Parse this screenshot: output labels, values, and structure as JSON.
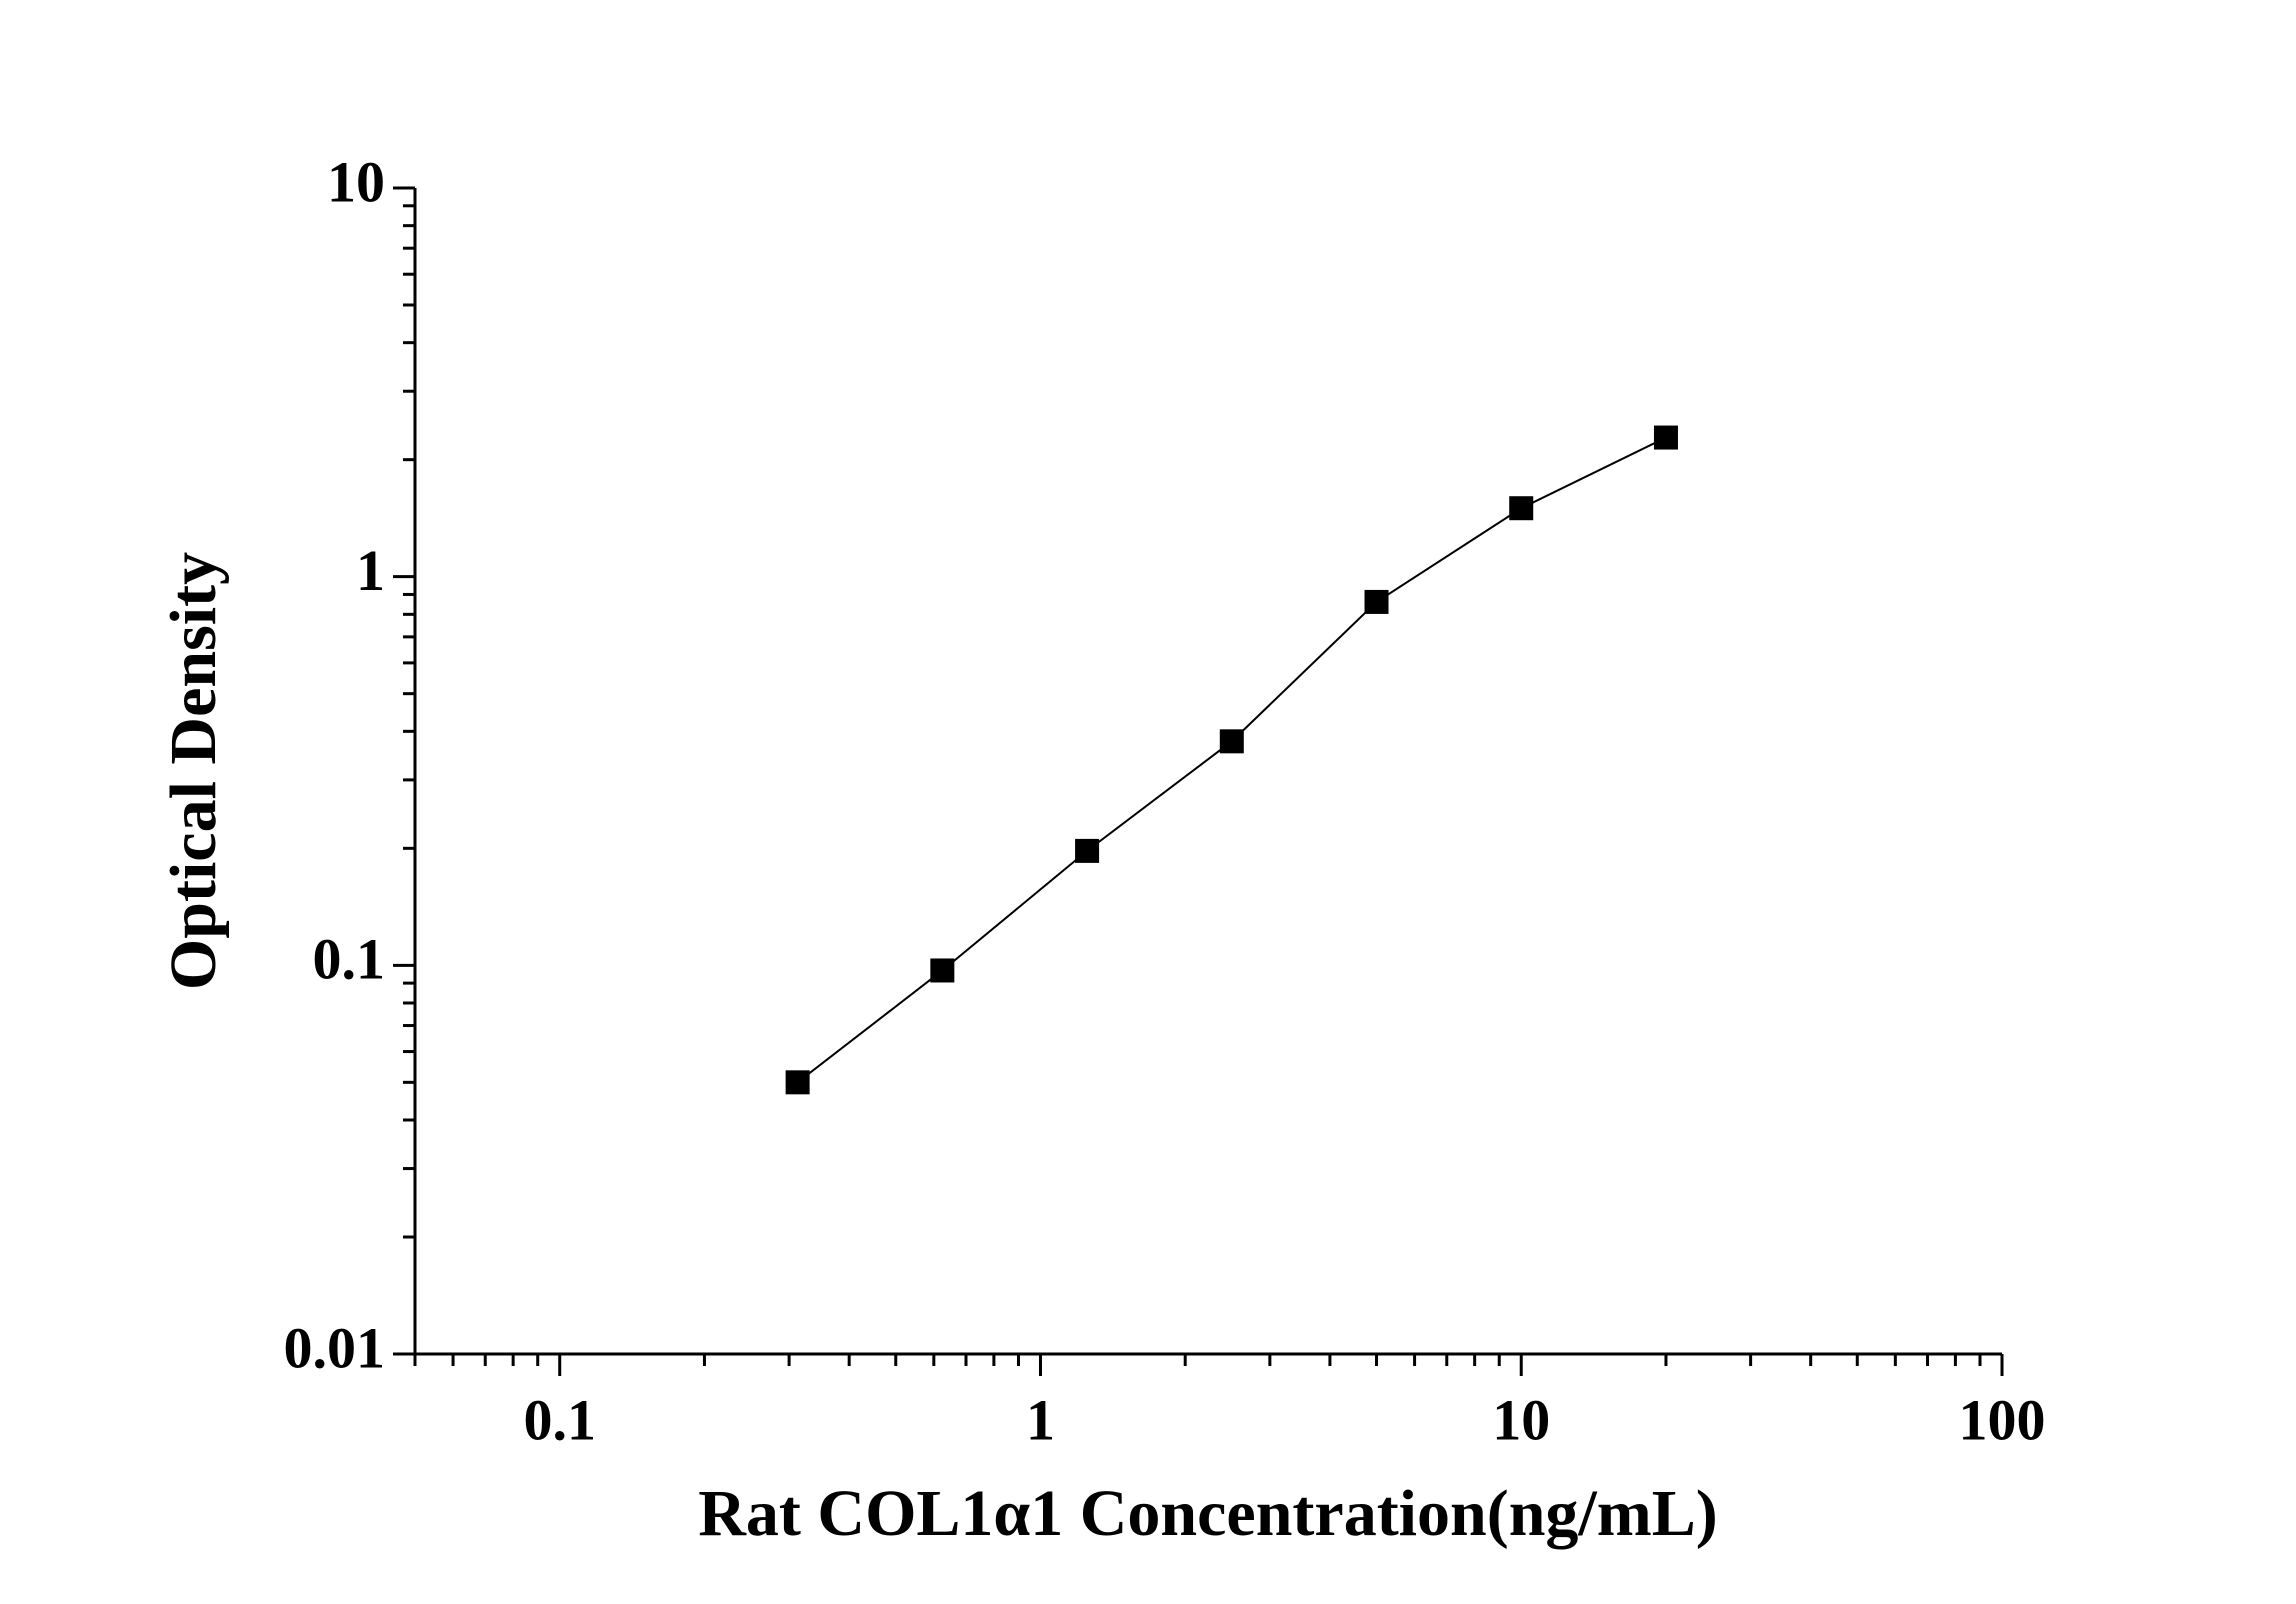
{
  "chart_data": {
    "type": "line",
    "x_label": "Rat COL1α1 Concentration(ng/mL)",
    "y_label": "Optical Density",
    "x": [
      0.3125,
      0.625,
      1.25,
      2.5,
      5,
      10,
      20
    ],
    "series": [
      {
        "color": "#000000",
        "values": [
          0.05,
          0.097,
          0.197,
          0.377,
          0.861,
          1.5,
          2.28
        ]
      }
    ],
    "xlim": [
      0.05,
      100
    ],
    "ylim": [
      0.01,
      10
    ],
    "xticks": [
      0.1,
      1,
      10,
      100
    ],
    "yticks": [
      0.01,
      0.1,
      1,
      10
    ],
    "xscale": "log",
    "yscale": "log",
    "grid": false,
    "marker": "square"
  }
}
